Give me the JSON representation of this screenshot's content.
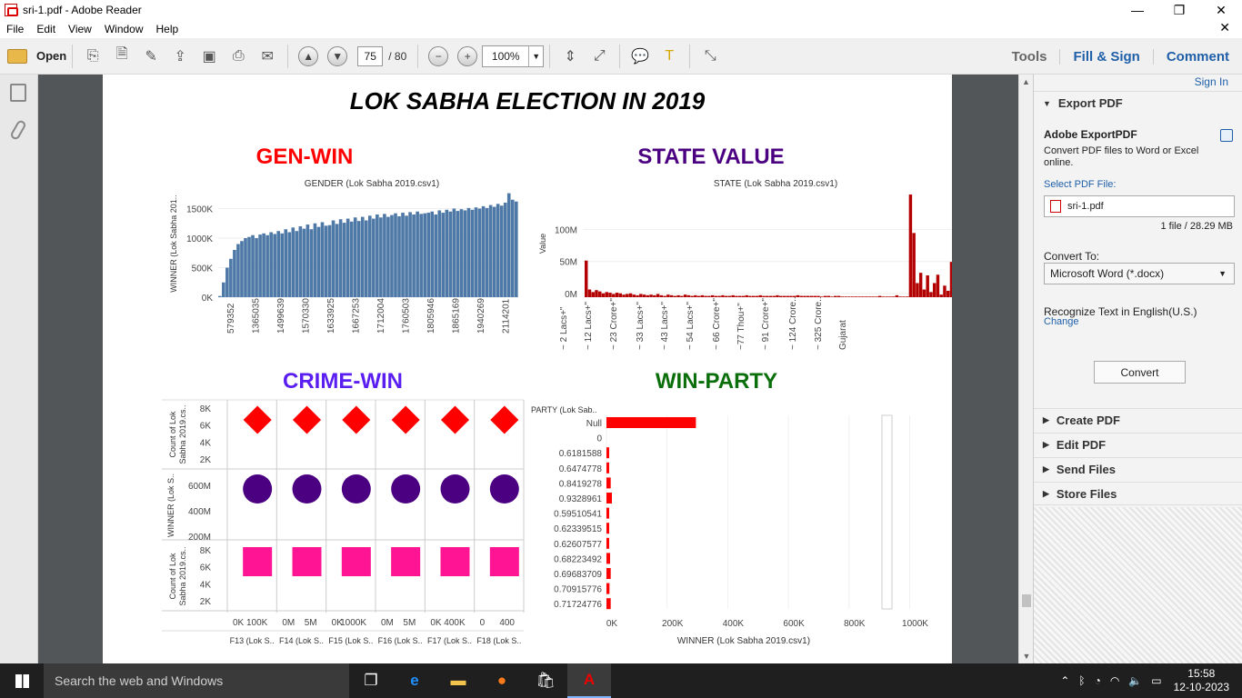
{
  "window": {
    "title": "sri-1.pdf - Adobe Reader",
    "minimize": "—",
    "restore": "❐",
    "close": "✕"
  },
  "menu": {
    "items": [
      "File",
      "Edit",
      "View",
      "Window",
      "Help"
    ],
    "close": "✕"
  },
  "toolbar": {
    "open_label": "Open",
    "page_current": "75",
    "page_total": "/ 80",
    "zoom": "100%"
  },
  "panel_links": {
    "tools": "Tools",
    "fill_sign": "Fill & Sign",
    "comment": "Comment"
  },
  "right_panel": {
    "sign_in": "Sign In",
    "export_header": "Export PDF",
    "export_title": "Adobe ExportPDF",
    "export_desc": "Convert PDF files to Word or Excel online.",
    "select_label": "Select PDF File:",
    "selected_file": "sri-1.pdf",
    "file_info": "1 file / 28.29 MB",
    "convert_to_label": "Convert To:",
    "convert_to_value": "Microsoft Word (*.docx)",
    "recognize": "Recognize Text in English(U.S.)",
    "change": "Change",
    "convert_button": "Convert",
    "sections": [
      "Create PDF",
      "Edit PDF",
      "Send Files",
      "Store Files"
    ]
  },
  "document": {
    "heading": "LOK SABHA ELECTION IN 2019",
    "titles": {
      "gen_win": "GEN-WIN",
      "state_value": "STATE VALUE",
      "crime_win": "CRIME-WIN",
      "win_party": "WIN-PARTY"
    },
    "title_colors": {
      "gen_win": "#ff0000",
      "state_value": "#4b0082",
      "crime_win": "#5a1ef0",
      "win_party": "#0a6e0a"
    }
  },
  "chart_data": [
    {
      "type": "bar",
      "title": "GENDER (Lok Sabha 2019.csv1)",
      "ylabel": "WINNER (Lok Sabha 201..",
      "yticks": [
        "1500K",
        "1000K",
        "500K",
        "0K"
      ],
      "ylim": [
        0,
        1800000
      ],
      "xticks": [
        "579352",
        "1365035",
        "1499639",
        "1570330",
        "1633925",
        "1667253",
        "1712004",
        "1760503",
        "1805946",
        "1865169",
        "1940269",
        "2114201"
      ],
      "values": [
        20000,
        250000,
        500000,
        650000,
        800000,
        900000,
        950000,
        1000000,
        1020000,
        1050000,
        1000000,
        1060000,
        1080000,
        1050000,
        1100000,
        1070000,
        1120000,
        1080000,
        1150000,
        1100000,
        1180000,
        1120000,
        1200000,
        1160000,
        1230000,
        1150000,
        1250000,
        1190000,
        1270000,
        1210000,
        1220000,
        1300000,
        1240000,
        1320000,
        1260000,
        1330000,
        1280000,
        1350000,
        1290000,
        1360000,
        1300000,
        1380000,
        1330000,
        1400000,
        1350000,
        1410000,
        1360000,
        1390000,
        1420000,
        1370000,
        1430000,
        1380000,
        1440000,
        1400000,
        1450000,
        1410000,
        1420000,
        1430000,
        1450000,
        1400000,
        1470000,
        1430000,
        1480000,
        1450000,
        1500000,
        1460000,
        1490000,
        1470000,
        1510000,
        1480000,
        1520000,
        1500000,
        1540000,
        1510000,
        1560000,
        1530000,
        1580000,
        1550000,
        1600000,
        1760000,
        1650000,
        1620000
      ]
    },
    {
      "type": "bar",
      "title": "STATE (Lok Sabha 2019.csv1)",
      "ylabel": "Value",
      "yticks": [
        "100M",
        "50M",
        "0M"
      ],
      "ylim": [
        0,
        160000000
      ],
      "xticks": [
        "~ 2 Lacs+\"",
        "~ 12 Lacs+\"",
        "~ 23 Crore+\"",
        "~ 33 Lacs+\"",
        "~ 43 Lacs+\"",
        "~ 54 Lacs+\"",
        "~ 66 Crore+\"",
        "~77 Thou+\"",
        "~ 91 Crore+\"",
        "~ 124 Crore..",
        "~ 325 Crore..",
        "Gujarat"
      ],
      "values": [
        57000000,
        12000000,
        8000000,
        11000000,
        9000000,
        6000000,
        8000000,
        7000000,
        5000000,
        7000000,
        6000000,
        4000000,
        5000000,
        6000000,
        4000000,
        3000000,
        5000000,
        4000000,
        3000000,
        4000000,
        3000000,
        5000000,
        3000000,
        2000000,
        4000000,
        3000000,
        2000000,
        3000000,
        2000000,
        4000000,
        3000000,
        2000000,
        3000000,
        2000000,
        3000000,
        2000000,
        2000000,
        3000000,
        2000000,
        2000000,
        3000000,
        2000000,
        2000000,
        3000000,
        2000000,
        2000000,
        2000000,
        3000000,
        2000000,
        2000000,
        2000000,
        3000000,
        2000000,
        2000000,
        2000000,
        2000000,
        3000000,
        2000000,
        2000000,
        2000000,
        2000000,
        2000000,
        3000000,
        2000000,
        2000000,
        2000000,
        2000000,
        2000000,
        2000000,
        1000000,
        2000000,
        2000000,
        1000000,
        2000000,
        2000000,
        1000000,
        1000000,
        1000000,
        1000000,
        1000000,
        1000000,
        1000000,
        1000000,
        1000000,
        1000000,
        1000000,
        2000000,
        1000000,
        1000000,
        1000000,
        1000000,
        3000000,
        1000000,
        1000000,
        1000000,
        160000000,
        100000000,
        22000000,
        38000000,
        12000000,
        34000000,
        8000000,
        22000000,
        35000000,
        4000000,
        18000000,
        10000000,
        55000000,
        52000000,
        38000000
      ]
    },
    {
      "type": "scatter",
      "title": "",
      "rows": [
        {
          "ylabel": "Count of Lok Sabha 2019.cs..",
          "yticks": [
            "8K",
            "6K",
            "4K",
            "2K"
          ],
          "shape": "diamond",
          "color": "#ff0000",
          "values": [
            6000,
            6000,
            6000,
            6000,
            6000,
            6000
          ]
        },
        {
          "ylabel": "WINNER (Lok S..",
          "yticks": [
            "600M",
            "400M",
            "200M"
          ],
          "shape": "circle",
          "color": "#4b0082",
          "values": [
            600000000,
            600000000,
            600000000,
            600000000,
            600000000,
            600000000
          ]
        },
        {
          "ylabel": "Count of Lok Sabha 2019.cs..",
          "yticks": [
            "8K",
            "6K",
            "4K",
            "2K"
          ],
          "shape": "square",
          "color": "#ff1493",
          "values": [
            6000,
            6000,
            6000,
            6000,
            6000,
            6000
          ]
        }
      ],
      "columns": [
        "F13 (Lok S..",
        "F14 (Lok S..",
        "F15 (Lok S..",
        "F16 (Lok S..",
        "F17 (Lok S..",
        "F18 (Lok S.."
      ],
      "xticks": [
        [
          "0K",
          "100K"
        ],
        [
          "0M",
          "5M"
        ],
        [
          "0K",
          "1000K"
        ],
        [
          "0M",
          "5M"
        ],
        [
          "0K",
          "400K"
        ],
        [
          "0",
          "400"
        ]
      ]
    },
    {
      "type": "bar",
      "orientation": "horizontal",
      "title": "",
      "ylabel": "PARTY (Lok Sab..",
      "xlabel": "WINNER (Lok Sabha 2019.csv1)",
      "xticks": [
        "0K",
        "200K",
        "400K",
        "600K",
        "800K",
        "1000K"
      ],
      "xlim": [
        0,
        1150000
      ],
      "categories": [
        "Null",
        "0",
        "0.6181588",
        "0.6474778",
        "0.8419278",
        "0.9328961",
        "0.59510541",
        "0.62339515",
        "0.62607577",
        "0.68223492",
        "0.69683709",
        "0.70915776",
        "0.71724776"
      ],
      "values": [
        295000,
        0,
        8000,
        8000,
        14000,
        18000,
        6000,
        7000,
        7000,
        12000,
        14000,
        10000,
        14000
      ],
      "color": "#ff0000"
    }
  ],
  "taskbar": {
    "search_placeholder": "Search the web and Windows",
    "time": "15:58",
    "date": "12-10-2023"
  }
}
